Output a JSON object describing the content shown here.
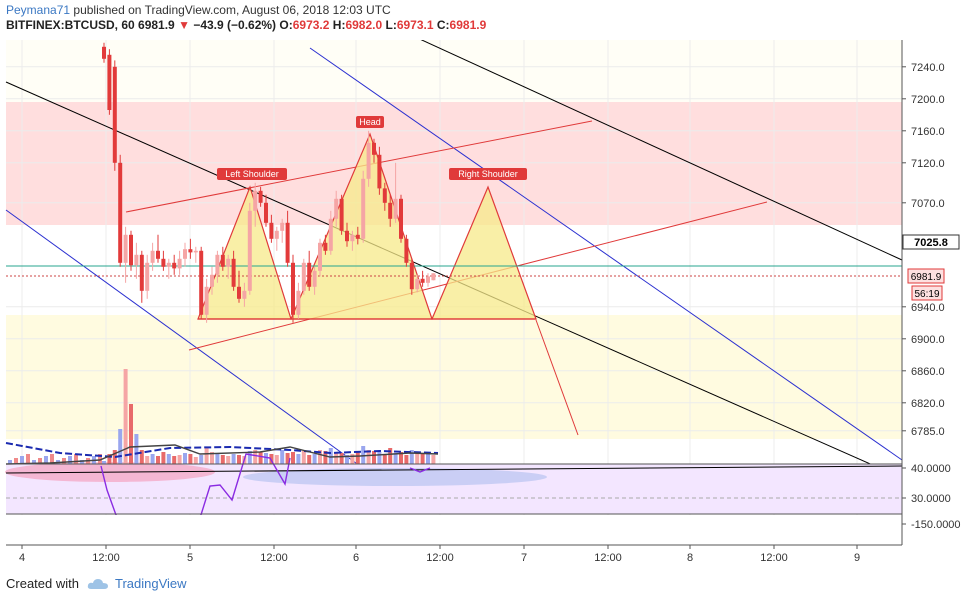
{
  "header": {
    "author": "Peymana71",
    "published": "published on TradingView.com, August 06, 2018 12:03 UTC",
    "symbol": "BITFINEX:BTCUSD, 60",
    "last": "6981.9",
    "change": "−43.9 (−0.62%)",
    "o_label": "O:",
    "o": "6973.2",
    "h_label": "H:",
    "h": "6982.0",
    "l_label": "L:",
    "l": "6973.1",
    "c_label": "C:",
    "c": "6981.9"
  },
  "footer": {
    "created": "Created with",
    "brand": "TradingView"
  },
  "chart_data": {
    "type": "candlestick",
    "x_ticks": [
      "4",
      "12:00",
      "5",
      "12:00",
      "6",
      "12:00",
      "7",
      "12:00",
      "8",
      "12:00",
      "9"
    ],
    "price_ticks": [
      7240.0,
      7200.0,
      7160.0,
      7120.0,
      7070.0,
      6940.0,
      6900.0,
      6860.0,
      6820.0,
      6785.0
    ],
    "price_tick_labels": [
      "7240.0",
      "7200.0",
      "7160.0",
      "7120.0",
      "7070.0",
      "6940.0",
      "6900.0",
      "6860.0",
      "6820.0",
      "6785.0"
    ],
    "badges": {
      "level": "7025.8",
      "last": "6981.9",
      "countdown": "56:19"
    },
    "annotations": [
      "Left Shoulder",
      "Head",
      "Right Shoulder"
    ],
    "osc_ticks": [
      "40.0000",
      "30.0000",
      "-150.0000"
    ],
    "colors": {
      "up": "#f5a5a5",
      "down": "#e23a3a",
      "pattern": "#f0d040",
      "zone_red": "#ffdede",
      "zone_yellow": "#fffbe0",
      "blue_line": "#2a2fd0",
      "red_line": "#e03a3a"
    },
    "candles": [
      {
        "o": 7265,
        "h": 7270,
        "l": 7245,
        "c": 7250
      },
      {
        "o": 7255,
        "h": 7262,
        "l": 7180,
        "c": 7186
      },
      {
        "o": 7240,
        "h": 7248,
        "l": 7110,
        "c": 7120
      },
      {
        "o": 7120,
        "h": 7130,
        "l": 6990,
        "c": 6995
      },
      {
        "o": 6995,
        "h": 7040,
        "l": 6970,
        "c": 7030
      },
      {
        "o": 7030,
        "h": 7035,
        "l": 6985,
        "c": 6992
      },
      {
        "o": 6992,
        "h": 7020,
        "l": 6975,
        "c": 7005
      },
      {
        "o": 7005,
        "h": 7010,
        "l": 6945,
        "c": 6960
      },
      {
        "o": 6960,
        "h": 7005,
        "l": 6950,
        "c": 6995
      },
      {
        "o": 6995,
        "h": 7020,
        "l": 6985,
        "c": 7010
      },
      {
        "o": 7010,
        "h": 7030,
        "l": 6995,
        "c": 7000
      },
      {
        "o": 7000,
        "h": 7010,
        "l": 6985,
        "c": 6990
      },
      {
        "o": 6990,
        "h": 7000,
        "l": 6975,
        "c": 6995
      },
      {
        "o": 6995,
        "h": 7005,
        "l": 6980,
        "c": 6988
      },
      {
        "o": 6988,
        "h": 7010,
        "l": 6980,
        "c": 7000
      },
      {
        "o": 7000,
        "h": 7020,
        "l": 6990,
        "c": 7012
      },
      {
        "o": 7012,
        "h": 7025,
        "l": 7000,
        "c": 7008
      },
      {
        "o": 7008,
        "h": 7015,
        "l": 6995,
        "c": 7010
      },
      {
        "o": 7010,
        "h": 7015,
        "l": 6925,
        "c": 6930
      },
      {
        "o": 6930,
        "h": 6975,
        "l": 6920,
        "c": 6965
      },
      {
        "o": 6965,
        "h": 6990,
        "l": 6955,
        "c": 6980
      },
      {
        "o": 6980,
        "h": 7010,
        "l": 6970,
        "c": 7005
      },
      {
        "o": 7005,
        "h": 7015,
        "l": 6985,
        "c": 6990
      },
      {
        "o": 6990,
        "h": 7005,
        "l": 6975,
        "c": 7000
      },
      {
        "o": 7000,
        "h": 7010,
        "l": 6960,
        "c": 6965
      },
      {
        "o": 6965,
        "h": 6985,
        "l": 6945,
        "c": 6950
      },
      {
        "o": 6950,
        "h": 6970,
        "l": 6940,
        "c": 6960
      },
      {
        "o": 6960,
        "h": 7070,
        "l": 6955,
        "c": 7060
      },
      {
        "o": 7060,
        "h": 7095,
        "l": 7040,
        "c": 7085
      },
      {
        "o": 7085,
        "h": 7090,
        "l": 7065,
        "c": 7070
      },
      {
        "o": 7070,
        "h": 7080,
        "l": 7040,
        "c": 7045
      },
      {
        "o": 7045,
        "h": 7055,
        "l": 7020,
        "c": 7025
      },
      {
        "o": 7025,
        "h": 7040,
        "l": 7010,
        "c": 7035
      },
      {
        "o": 7035,
        "h": 7050,
        "l": 7020,
        "c": 7045
      },
      {
        "o": 7045,
        "h": 7060,
        "l": 6990,
        "c": 6995
      },
      {
        "o": 6995,
        "h": 7005,
        "l": 6920,
        "c": 6930
      },
      {
        "o": 6930,
        "h": 6970,
        "l": 6925,
        "c": 6960
      },
      {
        "o": 6960,
        "h": 7000,
        "l": 6955,
        "c": 6995
      },
      {
        "o": 6995,
        "h": 7010,
        "l": 6960,
        "c": 6965
      },
      {
        "o": 6965,
        "h": 6990,
        "l": 6955,
        "c": 6985
      },
      {
        "o": 6985,
        "h": 7025,
        "l": 6978,
        "c": 7020
      },
      {
        "o": 7020,
        "h": 7030,
        "l": 7005,
        "c": 7010
      },
      {
        "o": 7010,
        "h": 7060,
        "l": 7005,
        "c": 7050
      },
      {
        "o": 7050,
        "h": 7085,
        "l": 7040,
        "c": 7075
      },
      {
        "o": 7075,
        "h": 7080,
        "l": 7030,
        "c": 7035
      },
      {
        "o": 7035,
        "h": 7045,
        "l": 7015,
        "c": 7022
      },
      {
        "o": 7022,
        "h": 7035,
        "l": 7010,
        "c": 7030
      },
      {
        "o": 7030,
        "h": 7040,
        "l": 7018,
        "c": 7025
      },
      {
        "o": 7025,
        "h": 7110,
        "l": 7020,
        "c": 7100
      },
      {
        "o": 7100,
        "h": 7160,
        "l": 7090,
        "c": 7145
      },
      {
        "o": 7145,
        "h": 7150,
        "l": 7120,
        "c": 7130
      },
      {
        "o": 7130,
        "h": 7140,
        "l": 7080,
        "c": 7088
      },
      {
        "o": 7088,
        "h": 7095,
        "l": 7060,
        "c": 7070
      },
      {
        "o": 7070,
        "h": 7080,
        "l": 7040,
        "c": 7050
      },
      {
        "o": 7050,
        "h": 7120,
        "l": 7045,
        "c": 7075
      },
      {
        "o": 7075,
        "h": 7080,
        "l": 7020,
        "c": 7025
      },
      {
        "o": 7025,
        "h": 7030,
        "l": 6990,
        "c": 6995
      },
      {
        "o": 6995,
        "h": 7000,
        "l": 6955,
        "c": 6962
      },
      {
        "o": 6962,
        "h": 6980,
        "l": 6958,
        "c": 6975
      },
      {
        "o": 6975,
        "h": 6985,
        "l": 6965,
        "c": 6970
      },
      {
        "o": 6970,
        "h": 6982,
        "l": 6965,
        "c": 6978
      },
      {
        "o": 6973.2,
        "h": 6982,
        "l": 6973.1,
        "c": 6981.9
      }
    ],
    "volume": [
      3,
      10,
      14,
      35,
      95,
      60,
      30,
      14,
      8,
      10,
      8,
      12,
      10,
      8,
      9,
      11,
      10,
      7,
      9,
      16,
      12,
      10,
      9,
      8,
      10,
      9,
      8,
      13,
      14,
      12,
      11,
      10,
      9,
      14,
      11,
      12,
      10,
      13,
      9,
      10,
      14,
      13,
      16,
      12,
      11,
      9,
      10,
      12,
      18,
      14,
      13,
      12,
      10,
      16,
      11,
      12,
      9,
      14,
      12,
      10,
      11,
      9
    ]
  }
}
